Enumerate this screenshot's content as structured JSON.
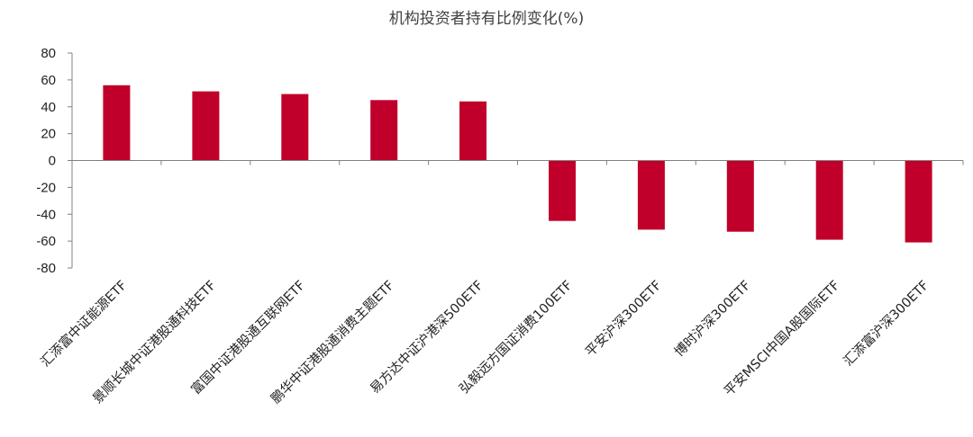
{
  "chart_data": {
    "type": "bar",
    "title": "机构投资者持有比例变化(%)",
    "xlabel": "",
    "ylabel": "",
    "ylim": [
      -80,
      80
    ],
    "yticks": [
      80,
      60,
      40,
      20,
      0,
      -20,
      -40,
      -60,
      -80
    ],
    "categories": [
      "汇添富中证能源ETF",
      "景顺长城中证港股通科技ETF",
      "富国中证港股通互联网ETF",
      "鹏华中证港股通消费主题ETF",
      "易方达中证沪港深500ETF",
      "弘毅远方国证消费100ETF",
      "平安沪深300ETF",
      "博时沪深300ETF",
      "平安MSCI中国A股国际ETF",
      "汇添富沪深300ETF"
    ],
    "values": [
      56,
      51.5,
      49.5,
      45,
      44,
      -45,
      -51.5,
      -53,
      -59,
      -61
    ],
    "bar_color": "#c0002a",
    "axis_color": "#808080",
    "grid": false,
    "legend": "none"
  }
}
